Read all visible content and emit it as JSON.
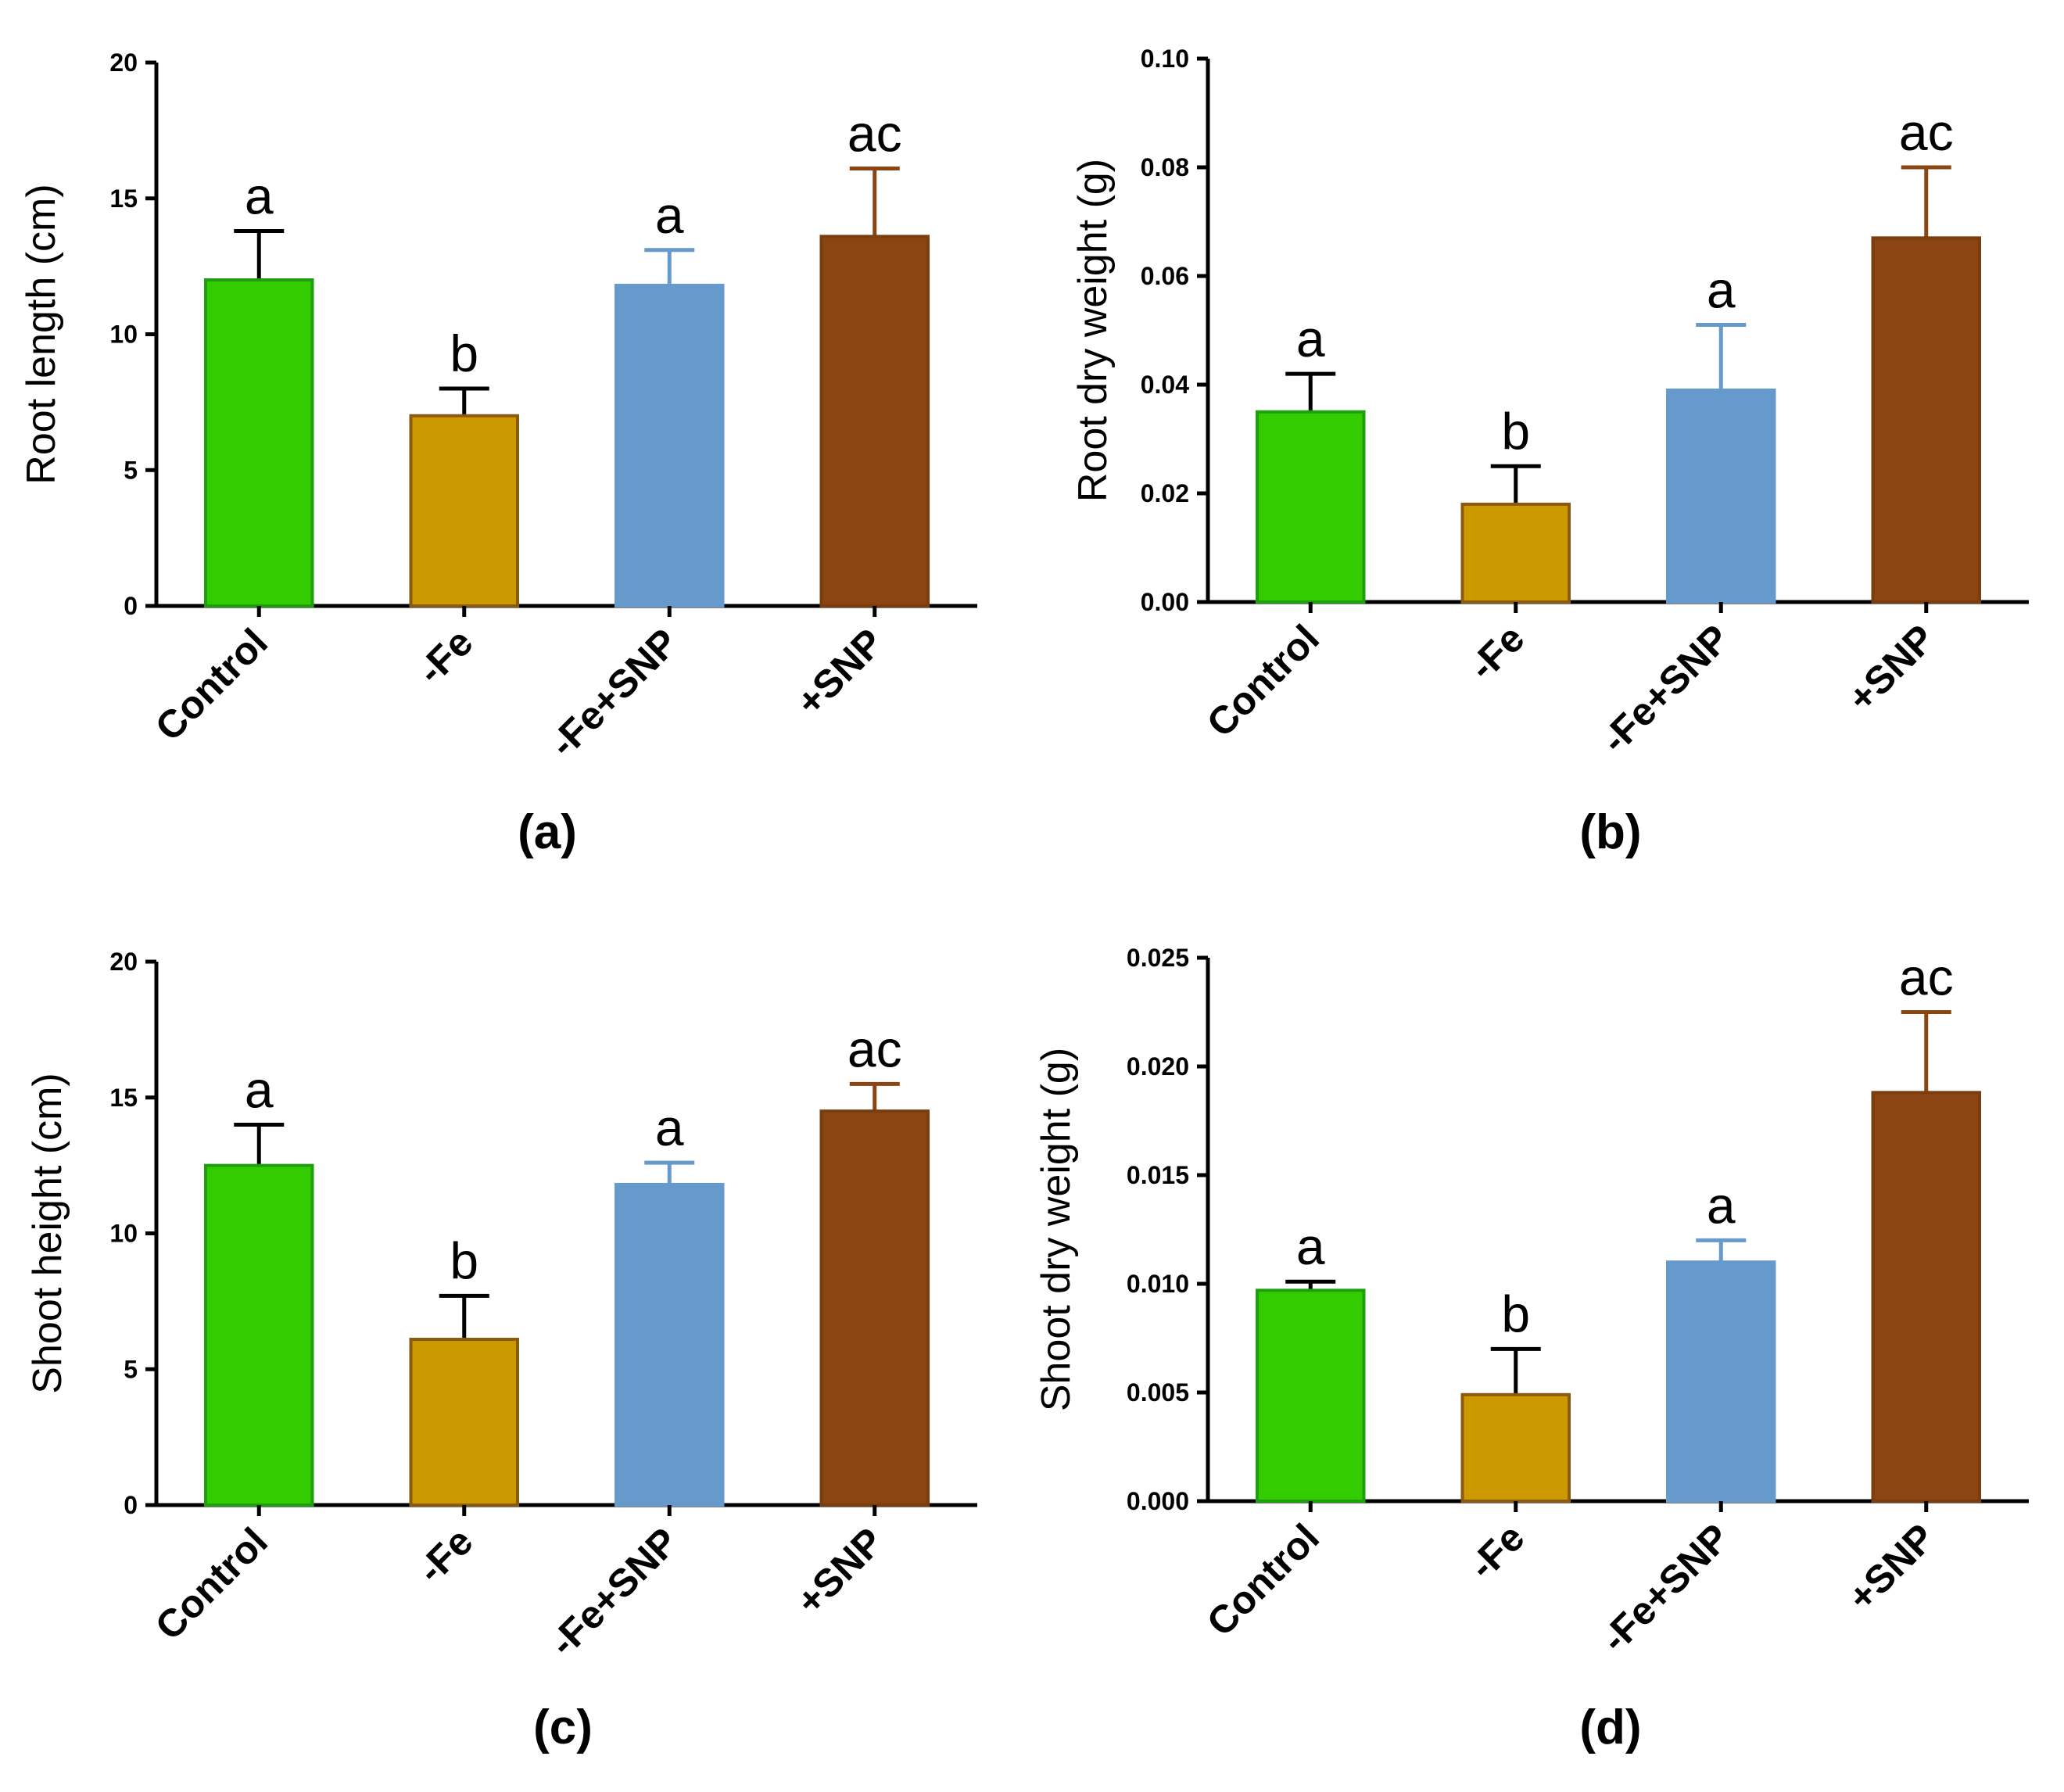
{
  "chart_data": [
    {
      "type": "bar",
      "panel_label": "(a)",
      "categories": [
        "Control",
        "-Fe",
        "-Fe+SNP",
        "+SNP"
      ],
      "values": [
        12.0,
        7.0,
        11.8,
        13.6
      ],
      "errors": [
        1.8,
        1.0,
        1.3,
        2.5
      ],
      "significance": [
        "a",
        "b",
        "a",
        "ac"
      ],
      "ylabel": "Root length (cm)",
      "ylim": [
        0,
        20
      ],
      "yticks": [
        "0",
        "5",
        "10",
        "15",
        "20"
      ],
      "colors": [
        "#33cc00",
        "#cc9900",
        "#6699cc",
        "#8b4513"
      ],
      "edge_colors": [
        "#1f9e10",
        "#8a5a10",
        "#6699cc",
        "#7a3d10"
      ],
      "error_colors": [
        "#000000",
        "#000000",
        "#6699cc",
        "#8b4513"
      ]
    },
    {
      "type": "bar",
      "panel_label": "(b)",
      "categories": [
        "Control",
        "-Fe",
        "-Fe+SNP",
        "+SNP"
      ],
      "values": [
        0.035,
        0.018,
        0.039,
        0.067
      ],
      "errors": [
        0.007,
        0.007,
        0.012,
        0.013
      ],
      "significance": [
        "a",
        "b",
        "a",
        "ac"
      ],
      "ylabel": "Root dry weight (g)",
      "ylim": [
        0,
        0.1
      ],
      "yticks": [
        "0.00",
        "0.02",
        "0.04",
        "0.06",
        "0.08",
        "0.10"
      ],
      "colors": [
        "#33cc00",
        "#cc9900",
        "#6699cc",
        "#8b4513"
      ],
      "edge_colors": [
        "#1f9e10",
        "#8a5a10",
        "#6699cc",
        "#7a3d10"
      ],
      "error_colors": [
        "#000000",
        "#000000",
        "#6699cc",
        "#8b4513"
      ]
    },
    {
      "type": "bar",
      "panel_label": "(c)",
      "categories": [
        "Control",
        "-Fe",
        "-Fe+SNP",
        "+SNP"
      ],
      "values": [
        12.5,
        6.1,
        11.8,
        14.5
      ],
      "errors": [
        1.5,
        1.6,
        0.8,
        1.0
      ],
      "significance": [
        "a",
        "b",
        "a",
        "ac"
      ],
      "ylabel": "Shoot height (cm)",
      "ylim": [
        0,
        20
      ],
      "yticks": [
        "0",
        "5",
        "10",
        "15",
        "20"
      ],
      "colors": [
        "#33cc00",
        "#cc9900",
        "#6699cc",
        "#8b4513"
      ],
      "edge_colors": [
        "#1f9e10",
        "#8a5a10",
        "#6699cc",
        "#7a3d10"
      ],
      "error_colors": [
        "#000000",
        "#000000",
        "#6699cc",
        "#8b4513"
      ]
    },
    {
      "type": "bar",
      "panel_label": "(d)",
      "categories": [
        "Control",
        "-Fe",
        "-Fe+SNP",
        "+SNP"
      ],
      "values": [
        0.0097,
        0.0049,
        0.011,
        0.0188
      ],
      "errors": [
        0.0004,
        0.0021,
        0.001,
        0.0037
      ],
      "significance": [
        "a",
        "b",
        "a",
        "ac"
      ],
      "ylabel": "Shoot dry weight (g)",
      "ylim": [
        0,
        0.025
      ],
      "yticks": [
        "0.000",
        "0.005",
        "0.010",
        "0.015",
        "0.020",
        "0.025"
      ],
      "colors": [
        "#33cc00",
        "#cc9900",
        "#6699cc",
        "#8b4513"
      ],
      "edge_colors": [
        "#1f9e10",
        "#8a5a10",
        "#6699cc",
        "#7a3d10"
      ],
      "error_colors": [
        "#000000",
        "#000000",
        "#6699cc",
        "#8b4513"
      ]
    }
  ]
}
